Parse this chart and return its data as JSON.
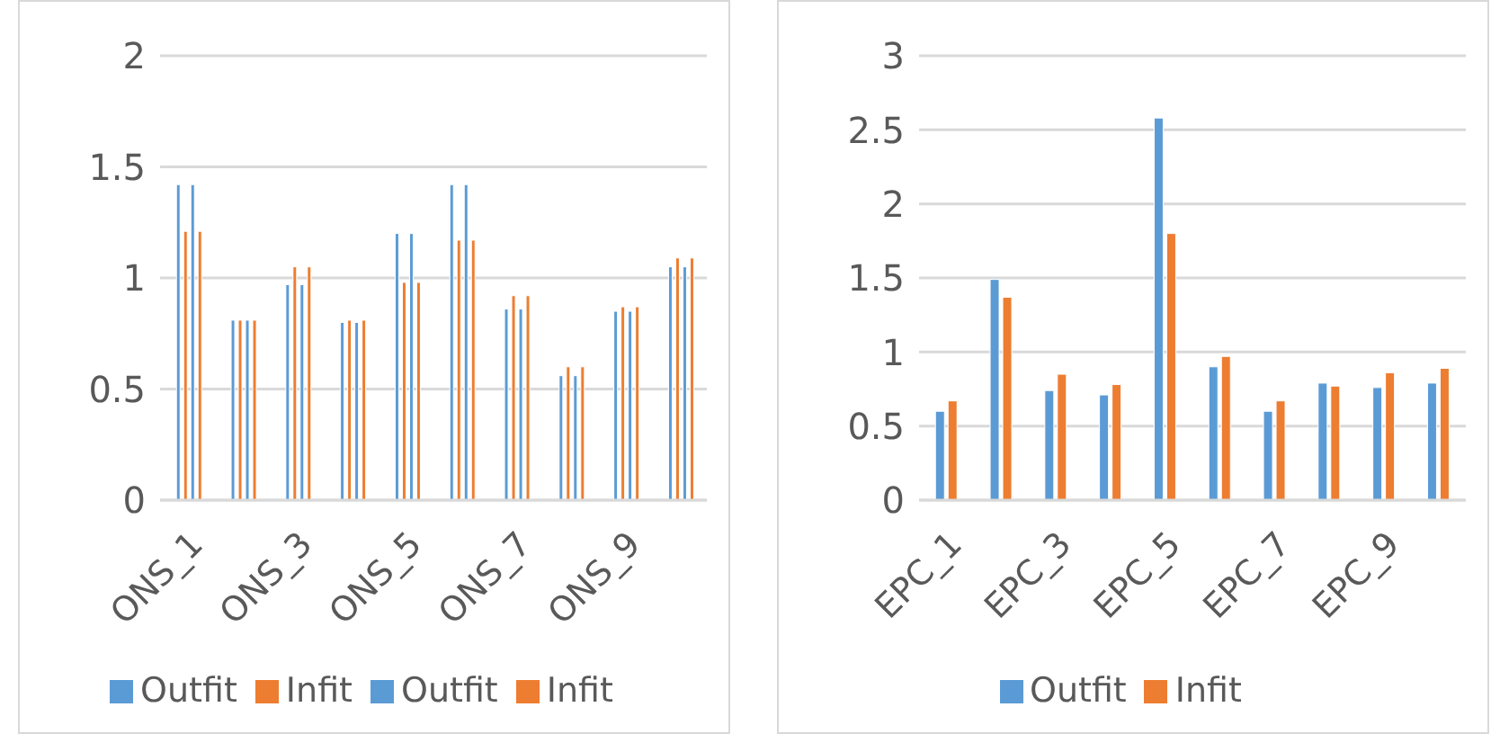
{
  "chart_data": [
    {
      "type": "bar",
      "categories": [
        "ONS_1",
        null,
        "ONS_3",
        null,
        "ONS_5",
        null,
        "ONS_7",
        null,
        "ONS_9",
        null
      ],
      "series": [
        {
          "name": "Outfit",
          "color": "#5b9bd5",
          "values": [
            1.42,
            0.81,
            0.97,
            0.8,
            1.2,
            1.42,
            0.86,
            0.56,
            0.85,
            1.05
          ]
        },
        {
          "name": "Infit",
          "color": "#ed7d31",
          "values": [
            1.21,
            0.81,
            1.05,
            0.81,
            0.98,
            1.17,
            0.92,
            0.6,
            0.87,
            1.09
          ]
        },
        {
          "name": "Outfit",
          "color": "#5b9bd5",
          "values": [
            1.42,
            0.81,
            0.97,
            0.8,
            1.2,
            1.42,
            0.86,
            0.56,
            0.85,
            1.05
          ]
        },
        {
          "name": "Infit",
          "color": "#ed7d31",
          "values": [
            1.21,
            0.81,
            1.05,
            0.81,
            0.98,
            1.17,
            0.92,
            0.6,
            0.87,
            1.09
          ]
        }
      ],
      "ylim": [
        0,
        2
      ],
      "yticks": [
        0,
        0.5,
        1,
        1.5,
        2
      ],
      "grid": "y",
      "legend": "bottom"
    },
    {
      "type": "bar",
      "categories": [
        "EPC_1",
        null,
        "EPC_3",
        null,
        "EPC_5",
        null,
        "EPC_7",
        null,
        "EPC_9",
        null
      ],
      "series": [
        {
          "name": "Outfit",
          "color": "#5b9bd5",
          "values": [
            0.6,
            1.49,
            0.74,
            0.71,
            2.58,
            0.9,
            0.6,
            0.79,
            0.76,
            0.79
          ]
        },
        {
          "name": "Infit",
          "color": "#ed7d31",
          "values": [
            0.67,
            1.37,
            0.85,
            0.78,
            1.8,
            0.97,
            0.67,
            0.77,
            0.86,
            0.89
          ]
        }
      ],
      "ylim": [
        0,
        3
      ],
      "yticks": [
        0,
        0.5,
        1,
        1.5,
        2,
        2.5,
        3
      ],
      "grid": "y",
      "legend": "bottom"
    }
  ]
}
